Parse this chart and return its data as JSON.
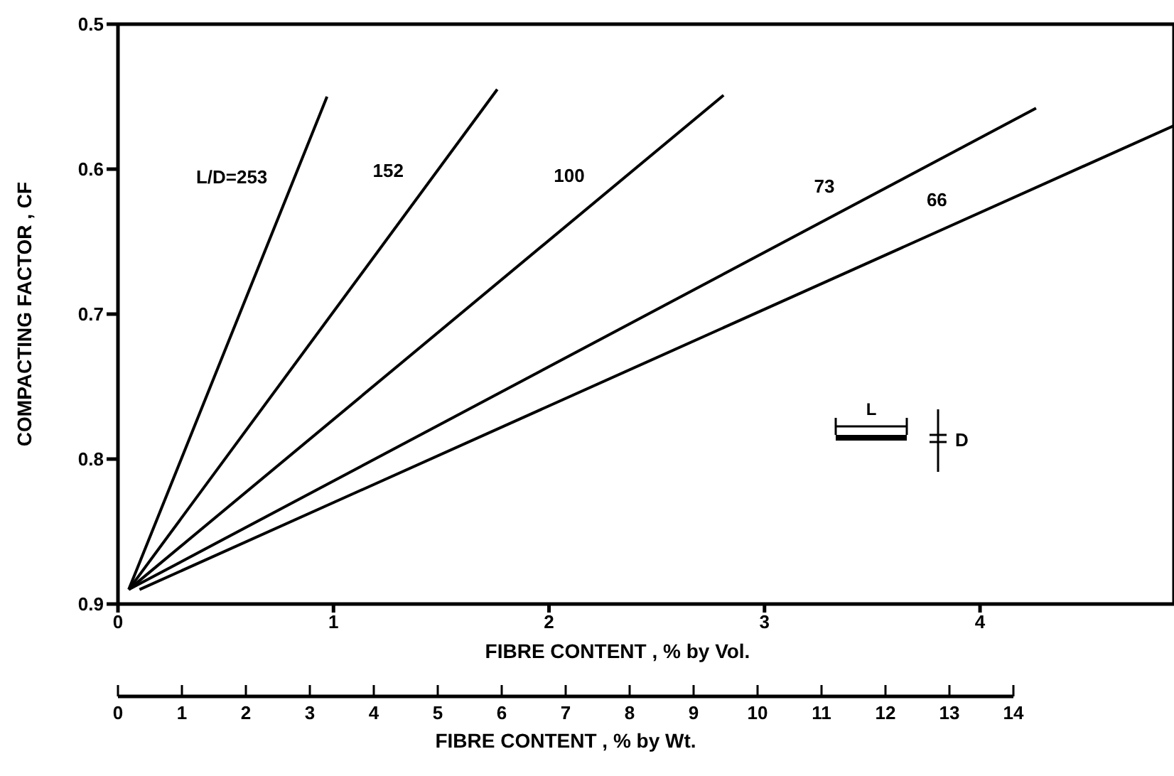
{
  "chart_data": {
    "type": "line",
    "xlabel": "FIBRE CONTENT , % by Vol.",
    "ylabel": "COMPACTING FACTOR , CF",
    "x2label": "FIBRE CONTENT , % by Wt.",
    "xlim": [
      0,
      4.9
    ],
    "xticks": [
      0,
      1,
      2,
      3,
      4
    ],
    "ylim": [
      0.9,
      0.5
    ],
    "yticks": [
      0.9,
      0.8,
      0.7,
      0.6,
      0.5
    ],
    "x2lim": [
      0,
      14
    ],
    "x2ticks": [
      0,
      1,
      2,
      3,
      4,
      5,
      6,
      7,
      8,
      9,
      10,
      11,
      12,
      13,
      14
    ],
    "series": [
      {
        "name": "L/D=253",
        "color": "#000000",
        "x": [
          0.05,
          0.97
        ],
        "values": [
          0.89,
          0.55
        ]
      },
      {
        "name": "152",
        "color": "#000000",
        "x": [
          0.05,
          1.76
        ],
        "values": [
          0.89,
          0.545
        ]
      },
      {
        "name": "100",
        "color": "#000000",
        "x": [
          0.05,
          2.81
        ],
        "values": [
          0.89,
          0.549
        ]
      },
      {
        "name": "73",
        "color": "#000000",
        "x": [
          0.05,
          4.26
        ],
        "values": [
          0.89,
          0.558
        ]
      },
      {
        "name": "66",
        "color": "#000000",
        "x": [
          0.1,
          4.9
        ],
        "values": [
          0.89,
          0.57
        ]
      }
    ],
    "annotations": [
      "L",
      "D"
    ],
    "grid": false,
    "legend": false,
    "marker": "none",
    "line_style": "solid"
  }
}
